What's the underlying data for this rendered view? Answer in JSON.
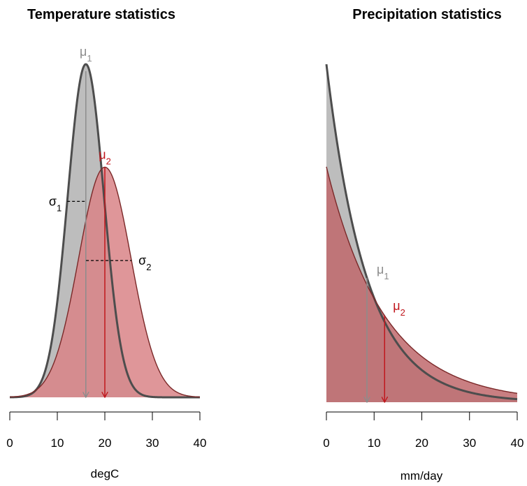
{
  "chart_data": [
    {
      "type": "area",
      "title": "Temperature statistics",
      "xlabel": "degC",
      "ylabel": "",
      "xlim": [
        0,
        40
      ],
      "x_ticks": [
        0,
        10,
        20,
        30,
        40
      ],
      "grid": false,
      "series": [
        {
          "distribution": "normal",
          "mean": 16,
          "sd": 3.8,
          "color": "#4d4d4d",
          "fill": "#bdbdbd"
        },
        {
          "distribution": "normal",
          "mean": 20,
          "sd": 5.5,
          "color": "#7a2828",
          "fill": "#d98487"
        }
      ],
      "annotations": [
        {
          "text": "μ",
          "sub": "1",
          "color": "#8c8c8c"
        },
        {
          "text": "μ",
          "sub": "2",
          "color": "#c0161c"
        },
        {
          "text": "σ",
          "sub": "1",
          "color": "#000000"
        },
        {
          "text": "σ",
          "sub": "2",
          "color": "#000000"
        }
      ]
    },
    {
      "type": "area",
      "title": "Precipitation statistics",
      "xlabel": "mm/day",
      "ylabel": "",
      "xlim": [
        0,
        40
      ],
      "x_ticks": [
        0,
        10,
        20,
        30,
        40
      ],
      "grid": false,
      "series": [
        {
          "distribution": "exponential",
          "mean": 8.5,
          "color": "#4d4d4d",
          "fill": "#bdbdbd"
        },
        {
          "distribution": "exponential",
          "mean": 12.2,
          "color": "#7a2828",
          "fill": "#c0686c"
        }
      ],
      "annotations": [
        {
          "text": "μ",
          "sub": "1",
          "color": "#8c8c8c"
        },
        {
          "text": "μ",
          "sub": "2",
          "color": "#c0161c"
        }
      ]
    }
  ]
}
